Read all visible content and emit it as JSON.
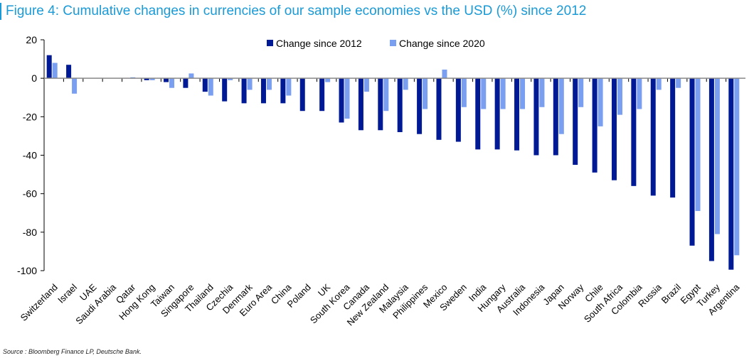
{
  "chart_data": {
    "type": "bar",
    "title": "Figure 4: Cumulative changes in currencies of our sample economies vs the USD (%) since 2012",
    "source": "Source : Bloomberg Finance LP, Deutsche Bank.",
    "xlabel": "",
    "ylabel": "",
    "ylim": [
      -100,
      20
    ],
    "yticks": [
      20,
      0,
      -20,
      -40,
      -60,
      -80,
      -100
    ],
    "legend_position": "top-center",
    "grid": false,
    "categories": [
      "Switzerland",
      "Israel",
      "UAE",
      "Saudi Arabia",
      "Qatar",
      "Hong Kong",
      "Taiwan",
      "Singapore",
      "Thailand",
      "Czechia",
      "Denmark",
      "Euro Area",
      "China",
      "Poland",
      "UK",
      "South Korea",
      "Canada",
      "New Zealand",
      "Malaysia",
      "Philippines",
      "Mexico",
      "Sweden",
      "India",
      "Hungary",
      "Australia",
      "Indonesia",
      "Japan",
      "Norway",
      "Chile",
      "South Africa",
      "Colombia",
      "Russia",
      "Brazil",
      "Egypt",
      "Turkey",
      "Argentina"
    ],
    "series": [
      {
        "name": "Change since 2012",
        "color": "#001a96",
        "values": [
          12,
          7,
          0,
          0,
          0,
          -1,
          -2,
          -5,
          -7,
          -12,
          -13,
          -13,
          -13,
          -17,
          -17,
          -23,
          -27,
          -27,
          -28,
          -29,
          -32,
          -33,
          -37,
          -37,
          -37.5,
          -40,
          -40,
          -45,
          -49,
          -53,
          -56,
          -61,
          -62,
          -87,
          -95,
          -99.5
        ]
      },
      {
        "name": "Change since 2020",
        "color": "#7a9ff0",
        "values": [
          8,
          -8,
          0,
          0,
          0.5,
          -1,
          -5,
          2.5,
          -9,
          -1,
          -6,
          -6,
          -9,
          0,
          -2,
          -21,
          -7,
          -17,
          -6,
          -16,
          4.5,
          -15,
          -16,
          -16,
          -16,
          -15,
          -29,
          -15,
          -25,
          -19,
          -16,
          -6,
          -5,
          -69,
          -81,
          -92
        ]
      }
    ]
  }
}
